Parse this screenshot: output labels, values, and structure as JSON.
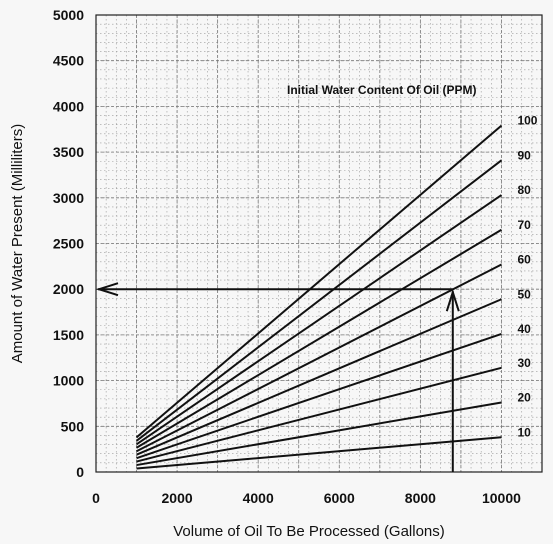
{
  "chart_data": {
    "type": "line",
    "title": "",
    "xlabel": "Volume of Oil To Be Processed (Gallons)",
    "ylabel": "Amount of Water Present (Milliliters)",
    "xlim": [
      0,
      11000
    ],
    "ylim": [
      0,
      5000
    ],
    "x_ticks": [
      "0",
      "2000",
      "4000",
      "6000",
      "8000",
      "10000"
    ],
    "y_ticks": [
      "0",
      "500",
      "1000",
      "1500",
      "2000",
      "2500",
      "3000",
      "3500",
      "4000",
      "4500",
      "5000"
    ],
    "grid": true,
    "legend_title": "Initial Water Content Of Oil (PPM)",
    "series": [
      {
        "name": "10",
        "x": [
          1000,
          10000
        ],
        "y": [
          38,
          380
        ]
      },
      {
        "name": "20",
        "x": [
          1000,
          10000
        ],
        "y": [
          76,
          760
        ]
      },
      {
        "name": "30",
        "x": [
          1000,
          10000
        ],
        "y": [
          114,
          1140
        ]
      },
      {
        "name": "40",
        "x": [
          1000,
          10000
        ],
        "y": [
          151,
          1510
        ]
      },
      {
        "name": "50",
        "x": [
          1000,
          10000
        ],
        "y": [
          189,
          1890
        ]
      },
      {
        "name": "60",
        "x": [
          1000,
          10000
        ],
        "y": [
          227,
          2270
        ]
      },
      {
        "name": "70",
        "x": [
          1000,
          10000
        ],
        "y": [
          265,
          2650
        ]
      },
      {
        "name": "80",
        "x": [
          1000,
          10000
        ],
        "y": [
          303,
          3030
        ]
      },
      {
        "name": "90",
        "x": [
          1000,
          10000
        ],
        "y": [
          341,
          3410
        ]
      },
      {
        "name": "100",
        "x": [
          1000,
          10000
        ],
        "y": [
          379,
          3790
        ]
      }
    ],
    "annotation": {
      "type": "arrow-path",
      "x_value": 8800,
      "y_value": 2000,
      "arrow_target_x": 0
    }
  }
}
